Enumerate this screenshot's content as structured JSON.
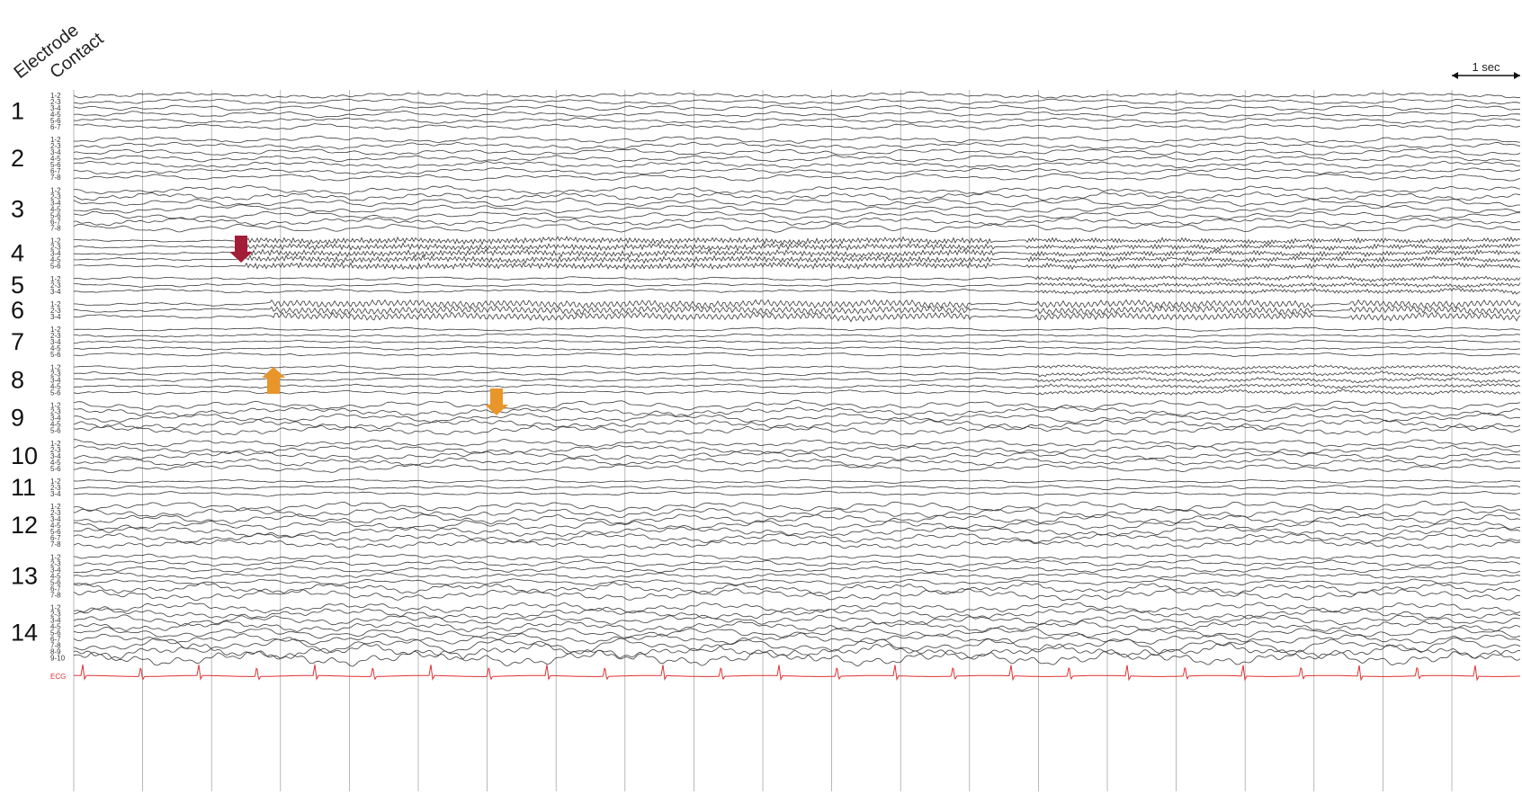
{
  "header": {
    "line1": "Electrode",
    "line2": "Contact"
  },
  "scale_bar": {
    "label": "1 sec"
  },
  "colors": {
    "trace": "#3a3a3a",
    "grid": "#9a9a9a",
    "ecg": "#e03030",
    "onset_arrow": "#a31d36",
    "spread_arrow": "#e8962a"
  },
  "chart_data": {
    "type": "line",
    "title": "",
    "xlabel": "",
    "ylabel": "",
    "time_scale_seconds": 1,
    "electrodes": [
      {
        "number": "1",
        "contacts": [
          "1-2",
          "2-3",
          "3-4",
          "4-5",
          "5-6",
          "6-7"
        ]
      },
      {
        "number": "2",
        "contacts": [
          "1-2",
          "2-3",
          "3-4",
          "4-5",
          "5-6",
          "6-7",
          "7-8"
        ]
      },
      {
        "number": "3",
        "contacts": [
          "1-2",
          "2-3",
          "3-4",
          "4-5",
          "5-6",
          "6-7",
          "7-8"
        ]
      },
      {
        "number": "4",
        "contacts": [
          "1-2",
          "2-3",
          "3-4",
          "4-5",
          "5-6"
        ]
      },
      {
        "number": "5",
        "contacts": [
          "1-2",
          "2-3",
          "3-4"
        ]
      },
      {
        "number": "6",
        "contacts": [
          "1-2",
          "2-3",
          "3-4"
        ]
      },
      {
        "number": "7",
        "contacts": [
          "1-2",
          "2-3",
          "3-4",
          "4-5",
          "5-6"
        ]
      },
      {
        "number": "8",
        "contacts": [
          "1-2",
          "2-3",
          "3-4",
          "4-5",
          "5-6"
        ]
      },
      {
        "number": "9",
        "contacts": [
          "1-2",
          "2-3",
          "3-4",
          "4-5",
          "5-6"
        ]
      },
      {
        "number": "10",
        "contacts": [
          "1-2",
          "2-3",
          "3-4",
          "4-5",
          "5-6"
        ]
      },
      {
        "number": "11",
        "contacts": [
          "1-2",
          "2-3",
          "3-4"
        ]
      },
      {
        "number": "12",
        "contacts": [
          "1-2",
          "2-3",
          "3-4",
          "4-5",
          "5-6",
          "6-7",
          "7-8"
        ]
      },
      {
        "number": "13",
        "contacts": [
          "1-2",
          "2-3",
          "3-4",
          "4-5",
          "5-6",
          "6-7",
          "7-8"
        ]
      },
      {
        "number": "14",
        "contacts": [
          "1-2",
          "2-3",
          "3-4",
          "4-5",
          "5-6",
          "6-7",
          "7-8",
          "8-9",
          "9-10"
        ]
      }
    ],
    "ecg_label": "ECG",
    "annotations": [
      {
        "kind": "onset-arrow",
        "direction": "down",
        "color_key": "onset_arrow",
        "electrode": "4"
      },
      {
        "kind": "spread-arrow",
        "direction": "up",
        "color_key": "spread_arrow",
        "electrode": "7"
      },
      {
        "kind": "spread-arrow",
        "direction": "down",
        "color_key": "spread_arrow",
        "electrode": "7"
      }
    ]
  }
}
